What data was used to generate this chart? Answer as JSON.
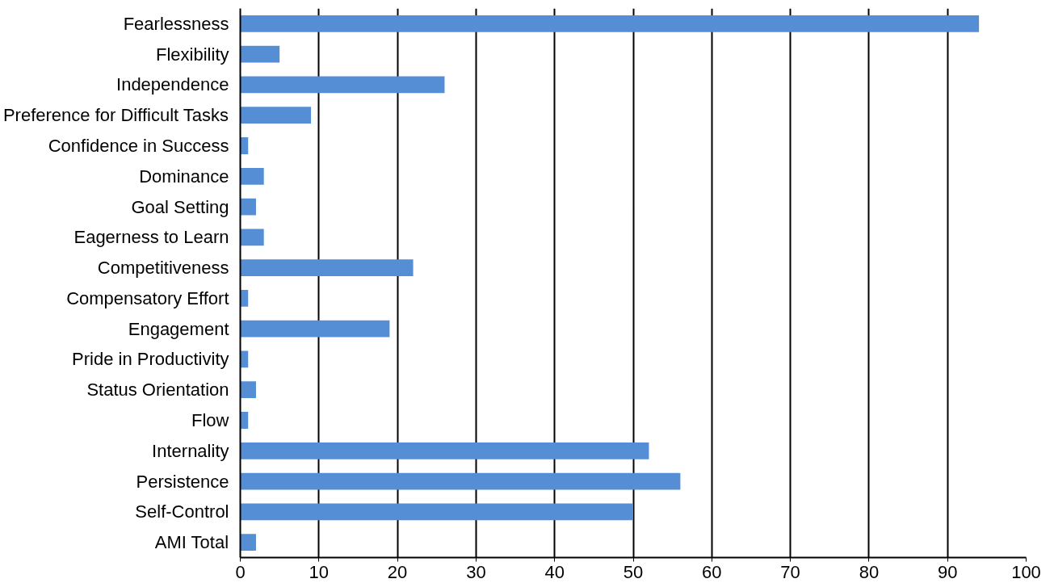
{
  "chart_data": {
    "type": "bar",
    "orientation": "horizontal",
    "categories": [
      "Fearlessness",
      "Flexibility",
      "Independence",
      "Preference for Difficult Tasks",
      "Confidence in Success",
      "Dominance",
      "Goal Setting",
      "Eagerness to Learn",
      "Competitiveness",
      "Compensatory Effort",
      "Engagement",
      "Pride in Productivity",
      "Status Orientation",
      "Flow",
      "Internality",
      "Persistence",
      "Self-Control",
      "AMI Total"
    ],
    "values": [
      94,
      5,
      26,
      9,
      1,
      3,
      2,
      3,
      22,
      1,
      19,
      1,
      2,
      1,
      52,
      56,
      50,
      2
    ],
    "color": "#558ed5",
    "xlim": [
      0,
      100
    ],
    "xticks": [
      0,
      10,
      20,
      30,
      40,
      50,
      60,
      70,
      80,
      90,
      100
    ],
    "grid": "x"
  }
}
